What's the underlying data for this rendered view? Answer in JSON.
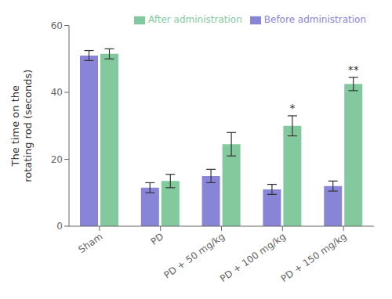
{
  "chart_data": {
    "type": "bar",
    "categories": [
      "Sham",
      "PD",
      "PD + 50 mg/kg",
      "PD + 100 mg/kg",
      "PD + 150 mg/kg"
    ],
    "series": [
      {
        "name": "Before administration",
        "color": "#8884d8",
        "values": [
          51.0,
          11.5,
          15.0,
          11.0,
          12.0
        ],
        "errors": [
          1.5,
          1.5,
          2.0,
          1.5,
          1.5
        ]
      },
      {
        "name": "After administration",
        "color": "#82ca9d",
        "values": [
          51.5,
          13.5,
          24.5,
          30.0,
          42.5
        ],
        "errors": [
          1.5,
          2.0,
          3.5,
          3.0,
          2.0
        ],
        "significance": [
          null,
          null,
          null,
          "*",
          "**"
        ]
      }
    ],
    "ylabel": "The time on the\nrotating rod (seconds)",
    "ylim": [
      0,
      60
    ],
    "yticks": [
      0,
      20,
      40,
      60
    ],
    "grid": false,
    "legend": "upper right"
  }
}
